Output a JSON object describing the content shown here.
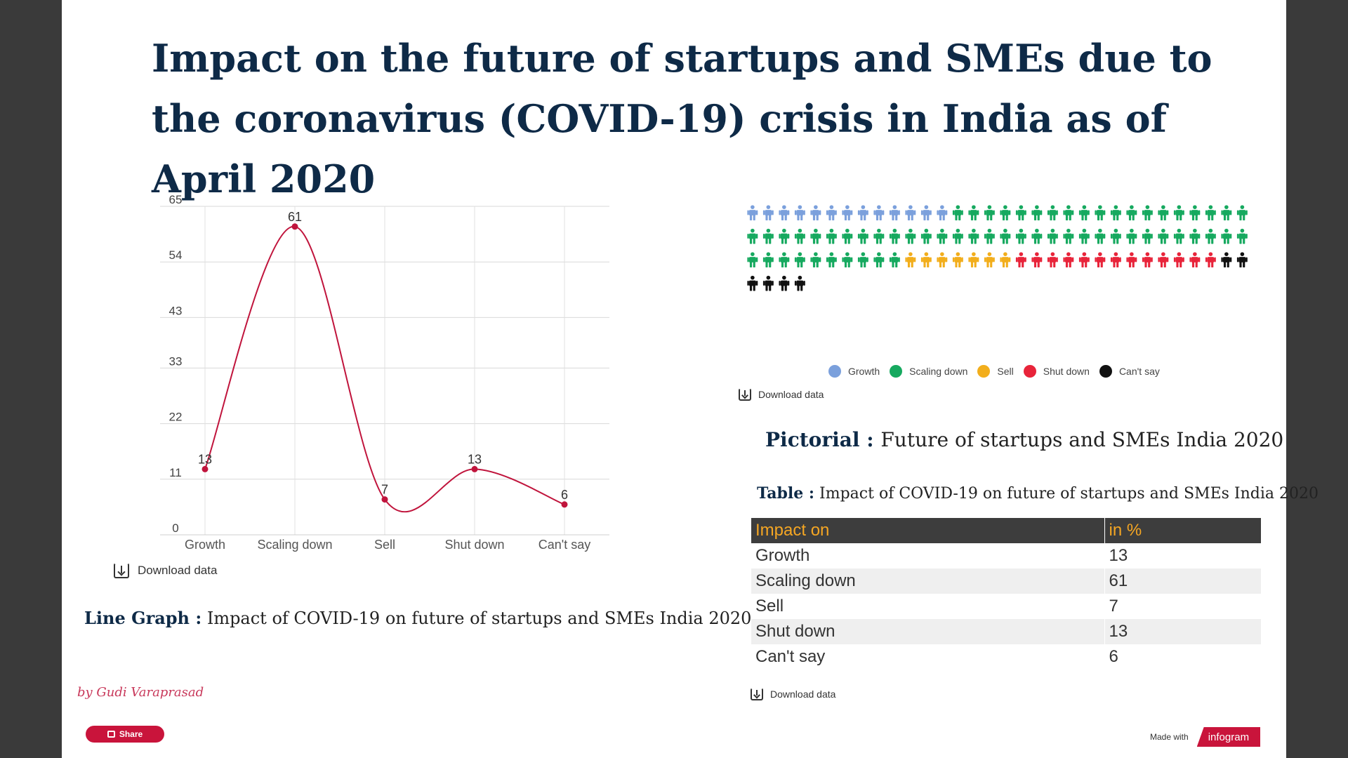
{
  "title": "Impact on the future of startups and SMEs due to the coronavirus (COVID-19) crisis in India as of April 2020",
  "colors": {
    "title": "#0e2a47",
    "line": "#c0143c",
    "growth": "#7ba0dc",
    "scaling_down": "#16a95f",
    "sell": "#f2ae1c",
    "shut_down": "#e8243a",
    "cant_say": "#111111",
    "table_header_bg": "#3d3d3d",
    "table_header_text": "#f5a623"
  },
  "chart_data": [
    {
      "type": "line",
      "categories": [
        "Growth",
        "Scaling down",
        "Sell",
        "Shut down",
        "Can't say"
      ],
      "values": [
        13,
        61,
        7,
        13,
        6
      ],
      "data_labels": [
        "13",
        "61",
        "7",
        "13",
        "6"
      ],
      "yticks": [
        "0",
        "11",
        "22",
        "33",
        "43",
        "54",
        "65"
      ],
      "ylim": [
        0,
        65
      ],
      "grid": true,
      "curve": "smooth"
    },
    {
      "type": "pictorial",
      "series": [
        {
          "name": "Growth",
          "values": [
            13
          ],
          "color": "#7ba0dc"
        },
        {
          "name": "Scaling down",
          "values": [
            61
          ],
          "color": "#16a95f"
        },
        {
          "name": "Sell",
          "values": [
            7
          ],
          "color": "#f2ae1c"
        },
        {
          "name": "Shut down",
          "values": [
            13
          ],
          "color": "#e8243a"
        },
        {
          "name": "Can't say",
          "values": [
            6
          ],
          "color": "#111111"
        }
      ],
      "legend_position": "bottom"
    },
    {
      "type": "table",
      "columns": [
        "Impact on",
        "in %"
      ],
      "rows": [
        [
          "Growth",
          "13"
        ],
        [
          "Scaling down",
          "61"
        ],
        [
          "Sell",
          "7"
        ],
        [
          "Shut down",
          "13"
        ],
        [
          "Can't say",
          "6"
        ]
      ]
    }
  ],
  "download_label": "Download data",
  "captions": {
    "line_label": "Line Graph :",
    "line_text": " Impact of COVID-19 on future of startups and SMEs India 2020",
    "picto_label": "Pictorial : ",
    "picto_text": "Future of startups and SMEs India 2020",
    "table_label": "Table :",
    "table_text": "  Impact of COVID-19 on future of startups and SMEs India 2020"
  },
  "author": "by Gudi Varaprasad",
  "share_label": "Share",
  "made_with": "Made with",
  "brand": "infogram"
}
